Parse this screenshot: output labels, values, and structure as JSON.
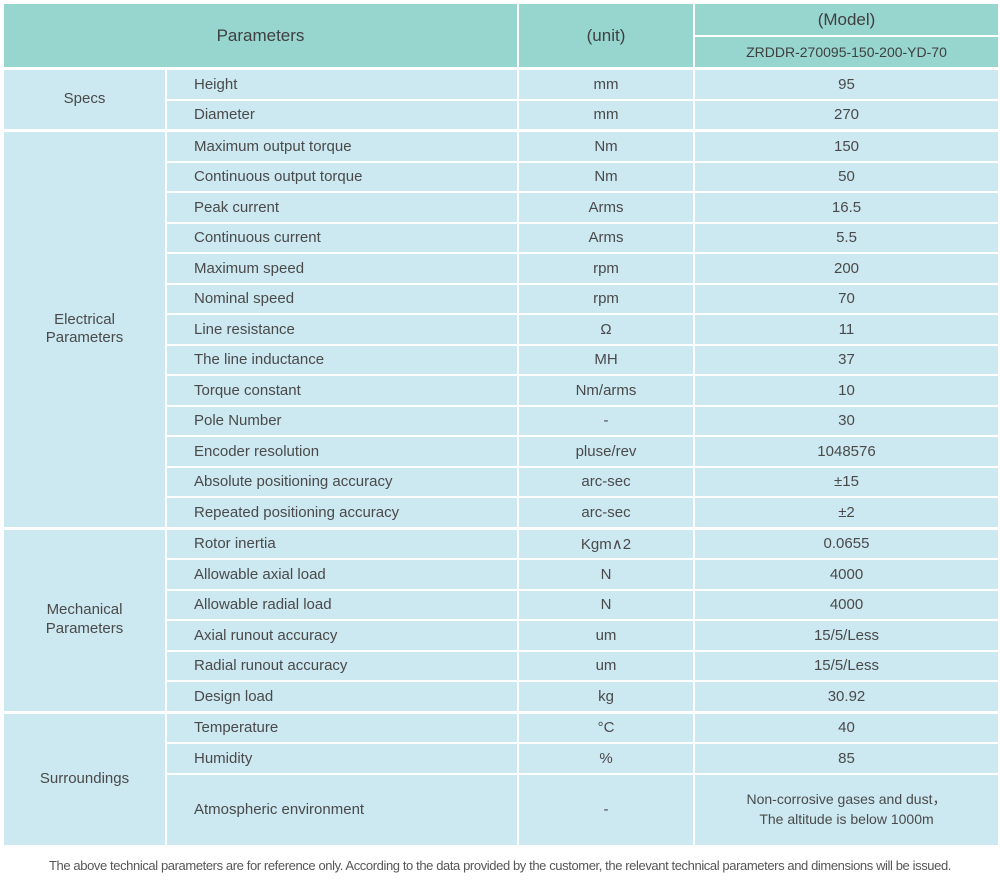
{
  "header": {
    "parameters_label": "Parameters",
    "unit_label": "(unit)",
    "model_label": "(Model)",
    "model_value": "ZRDDR-270095-150-200-YD-70"
  },
  "sections": [
    {
      "group": "Specs",
      "rows": [
        {
          "name": "Height",
          "unit": "mm",
          "value": "95"
        },
        {
          "name": "Diameter",
          "unit": "mm",
          "value": "270"
        }
      ]
    },
    {
      "group": "Electrical Parameters",
      "rows": [
        {
          "name": "Maximum output torque",
          "unit": "Nm",
          "value": "150"
        },
        {
          "name": "Continuous output torque",
          "unit": "Nm",
          "value": "50"
        },
        {
          "name": "Peak current",
          "unit": "Arms",
          "value": "16.5"
        },
        {
          "name": "Continuous current",
          "unit": "Arms",
          "value": "5.5"
        },
        {
          "name": "Maximum speed",
          "unit": "rpm",
          "value": "200"
        },
        {
          "name": "Nominal speed",
          "unit": "rpm",
          "value": "70"
        },
        {
          "name": "Line resistance",
          "unit": "Ω",
          "value": "11"
        },
        {
          "name": "The line inductance",
          "unit": "MH",
          "value": "37"
        },
        {
          "name": "Torque constant",
          "unit": "Nm/arms",
          "value": "10"
        },
        {
          "name": "Pole Number",
          "unit": "-",
          "value": "30"
        },
        {
          "name": "Encoder resolution",
          "unit": "pluse/rev",
          "value": "1048576"
        },
        {
          "name": "Absolute positioning accuracy",
          "unit": "arc-sec",
          "value": "±15"
        },
        {
          "name": "Repeated positioning accuracy",
          "unit": "arc-sec",
          "value": "±2"
        }
      ]
    },
    {
      "group": "Mechanical Parameters",
      "rows": [
        {
          "name": "Rotor inertia",
          "unit": "Kgm∧2",
          "value": "0.0655"
        },
        {
          "name": "Allowable axial load",
          "unit": "N",
          "value": "4000"
        },
        {
          "name": "Allowable radial load",
          "unit": "N",
          "value": "4000"
        },
        {
          "name": "Axial runout accuracy",
          "unit": "um",
          "value": "15/5/Less"
        },
        {
          "name": "Radial runout accuracy",
          "unit": "um",
          "value": "15/5/Less"
        },
        {
          "name": "Design load",
          "unit": "kg",
          "value": "30.92"
        }
      ]
    },
    {
      "group": "Surroundings",
      "rows": [
        {
          "name": "Temperature",
          "unit": "°C",
          "value": "40"
        },
        {
          "name": "Humidity",
          "unit": "%",
          "value": "85"
        },
        {
          "name": "Atmospheric environment",
          "unit": "-",
          "value_line1": "Non-corrosive gases and dust，",
          "value_line2": "The altitude is below 1000m"
        }
      ]
    }
  ],
  "footer_note": "The above technical parameters are for reference only. According to the data provided by the customer, the relevant technical parameters and dimensions will be issued.",
  "colors": {
    "header_bg": "#97d5cf",
    "cell_bg": "#cce8f0",
    "text": "#4a4a4a"
  }
}
